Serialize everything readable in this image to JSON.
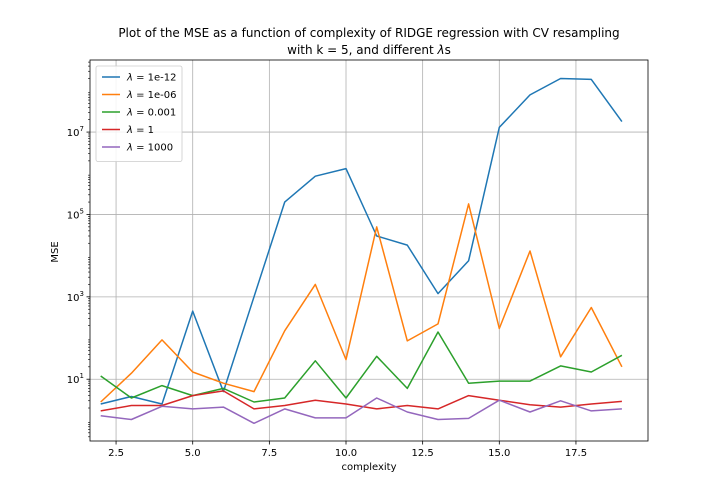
{
  "chart_data": {
    "type": "line",
    "title_line1": "Plot of the MSE as a function of complexity of RIDGE regression with CV resampling",
    "title_line2_prefix": "with k = 5, and different ",
    "title_line2_lambda": "λ",
    "title_line2_suffix": "s",
    "xlabel": "complexity",
    "ylabel": "MSE",
    "xlim": [
      1.65,
      19.85
    ],
    "ylim_log10": [
      -0.5,
      8.75
    ],
    "y_scale": "log",
    "xticks": [
      2.5,
      5.0,
      7.5,
      10.0,
      12.5,
      15.0,
      17.5
    ],
    "xtick_labels": [
      "2.5",
      "5.0",
      "7.5",
      "10.0",
      "12.5",
      "15.0",
      "17.5"
    ],
    "yticks_log10": [
      1,
      3,
      5,
      7
    ],
    "ytick_labels": [
      {
        "base": "10",
        "exp": "1"
      },
      {
        "base": "10",
        "exp": "3"
      },
      {
        "base": "10",
        "exp": "5"
      },
      {
        "base": "10",
        "exp": "7"
      }
    ],
    "grid": true,
    "legend_position": "top-left",
    "x": [
      2,
      3,
      4,
      5,
      6,
      7,
      8,
      9,
      10,
      11,
      12,
      13,
      14,
      15,
      16,
      17,
      18,
      19
    ],
    "series": [
      {
        "name_symbol": "λ",
        "name_value": " = 1e-12",
        "color": "#1f77b4",
        "values": [
          2.5,
          3.8,
          2.5,
          450,
          5,
          1000,
          200000,
          850000,
          1300000,
          30000,
          18000,
          1200,
          7500,
          13000000,
          80000000,
          200000000,
          190000000,
          18000000
        ]
      },
      {
        "name_symbol": "λ",
        "name_value": " = 1e-06",
        "color": "#ff7f0e",
        "values": [
          2.8,
          14,
          90,
          15,
          8,
          5,
          150,
          2000,
          30,
          50000,
          85,
          220,
          180000,
          170,
          13000,
          35,
          550,
          20
        ]
      },
      {
        "name_symbol": "λ",
        "name_value": " = 0.001",
        "color": "#2ca02c",
        "values": [
          12,
          3.5,
          7,
          4,
          6,
          2.8,
          3.5,
          28,
          3.5,
          36,
          6,
          140,
          8,
          9,
          9,
          21,
          15,
          38
        ]
      },
      {
        "name_symbol": "λ",
        "name_value": " = 1",
        "color": "#d62728",
        "values": [
          1.7,
          2.3,
          2.3,
          4,
          5.2,
          1.9,
          2.3,
          3.1,
          2.5,
          1.9,
          2.3,
          1.9,
          4,
          3.1,
          2.4,
          2.1,
          2.5,
          2.9
        ]
      },
      {
        "name_symbol": "λ",
        "name_value": " = 1000",
        "color": "#9467bd",
        "values": [
          1.3,
          1.05,
          2.2,
          1.9,
          2.1,
          0.85,
          1.9,
          1.15,
          1.15,
          3.5,
          1.6,
          1.05,
          1.12,
          3.1,
          1.6,
          3,
          1.7,
          1.9
        ]
      }
    ]
  }
}
